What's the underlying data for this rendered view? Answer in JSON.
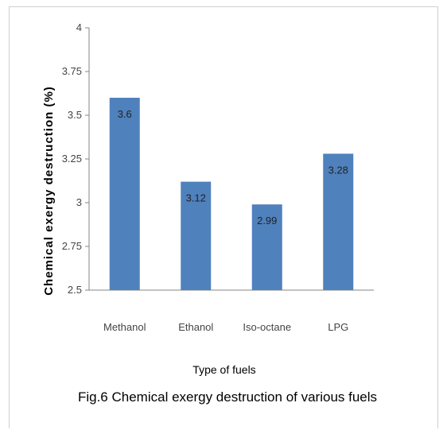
{
  "chart_data": {
    "type": "bar",
    "categories": [
      "Methanol",
      "Ethanol",
      "Iso-octane",
      "LPG"
    ],
    "values": [
      3.6,
      3.12,
      2.99,
      3.28
    ],
    "data_labels": [
      "3.6",
      "3.12",
      "2.99",
      "3.28"
    ],
    "xlabel": "Type of fuels",
    "ylabel": "Chemical exergy destruction (%)",
    "caption": "Fig.6 Chemical exergy destruction of various fuels",
    "ylim": [
      2.5,
      4
    ],
    "yticks": [
      "2.5",
      "2.75",
      "3",
      "3.25",
      "3.5",
      "3.75",
      "4"
    ],
    "grid": false,
    "bar_color": "#4f81bd"
  }
}
